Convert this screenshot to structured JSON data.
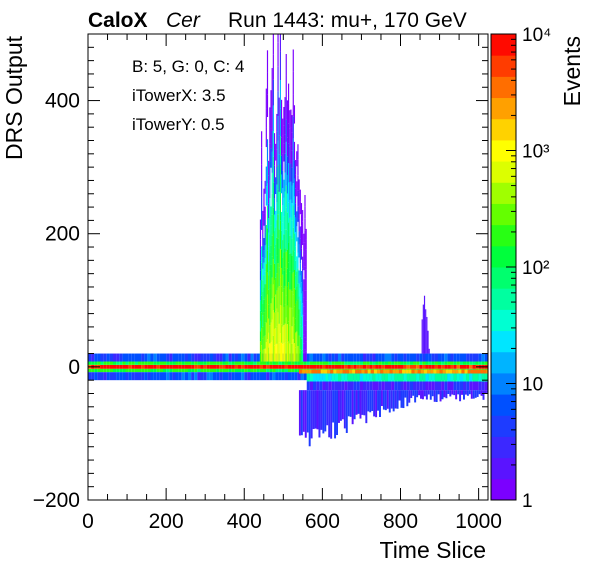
{
  "header": {
    "brand": "CaloX",
    "channel": "Cer",
    "run_info": "Run 1443: mu+, 170 GeV"
  },
  "info_box": {
    "line1": "B: 5, G: 0, C: 4",
    "line2": "iTowerX: 3.5",
    "line3": "iTowerY: 0.5"
  },
  "chart_data": {
    "type": "heatmap",
    "title": "",
    "xlabel": "Time Slice",
    "ylabel": "DRS Output",
    "zlabel": "Events",
    "xlim": [
      0,
      1024
    ],
    "ylim": [
      -200,
      500
    ],
    "zlim": [
      1,
      10000
    ],
    "z_scale": "log",
    "x_ticks": [
      "0",
      "200",
      "400",
      "600",
      "800",
      "1000"
    ],
    "y_ticks": [
      "−200",
      "0",
      "200",
      "400"
    ],
    "z_ticks": [
      "1",
      "10",
      "10²",
      "10³",
      "10⁴"
    ],
    "bands": [
      {
        "x": [
          0,
          1024
        ],
        "y": [
          -3,
          3
        ],
        "events": 8000
      },
      {
        "x": [
          0,
          1024
        ],
        "y": [
          3,
          8
        ],
        "events": 150
      },
      {
        "x": [
          0,
          1024
        ],
        "y": [
          -8,
          -3
        ],
        "events": 150
      },
      {
        "x": [
          0,
          1024
        ],
        "y": [
          8,
          20
        ],
        "events": 6
      },
      {
        "x": [
          0,
          1024
        ],
        "y": [
          -20,
          -8
        ],
        "events": 6
      },
      {
        "x": [
          540,
          1024
        ],
        "y": [
          -10,
          -4
        ],
        "events": 2500
      },
      {
        "x": [
          560,
          1024
        ],
        "y": [
          -22,
          -10
        ],
        "events": 40
      },
      {
        "x": [
          560,
          1024
        ],
        "y": [
          -35,
          -22
        ],
        "events": 3
      }
    ],
    "pulse": {
      "x_range": [
        440,
        560
      ],
      "peak_x": 490,
      "peak_events": 800,
      "max_y": 500
    },
    "undershoot": {
      "x_range": [
        540,
        1024
      ],
      "min_y": -115,
      "events": 3
    },
    "secondary_spike": {
      "x": 860,
      "max_y": 120,
      "events": 2
    },
    "colormap": [
      "#7b00ff",
      "#5a14ff",
      "#3c28ff",
      "#1e3cff",
      "#0050ff",
      "#0082ff",
      "#00b4ff",
      "#00e6ff",
      "#00ffd2",
      "#00ffa0",
      "#00ff6e",
      "#00ff3c",
      "#28ff14",
      "#64ff00",
      "#a0ff00",
      "#dcff00",
      "#ffff00",
      "#ffd200",
      "#ffa000",
      "#ff6e00",
      "#ff3c00",
      "#ff0a00"
    ]
  }
}
